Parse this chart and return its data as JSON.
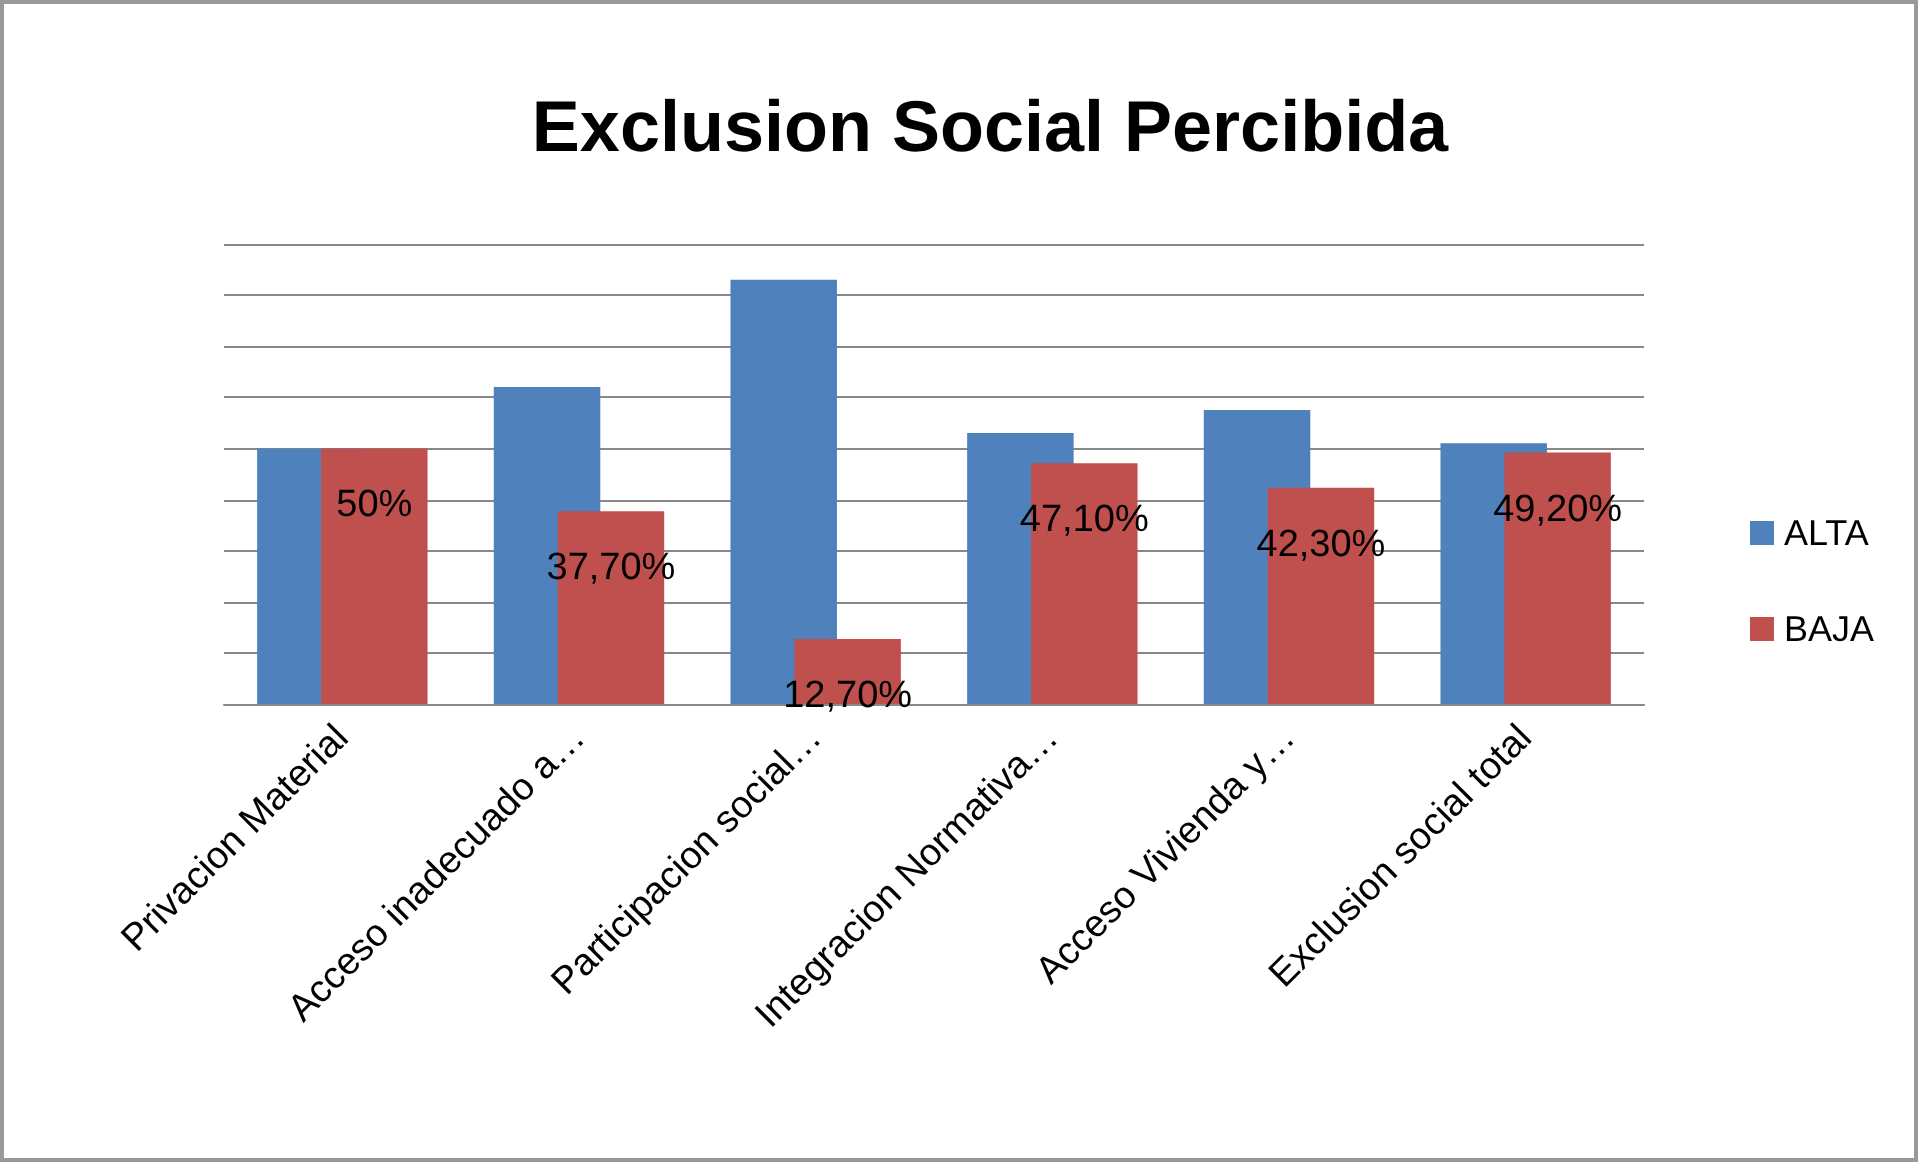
{
  "chart_data": {
    "type": "bar",
    "title": "Exclusion Social Percibida",
    "categories": [
      "Privacion Material",
      "Acceso inadecuado a…",
      "Participacion social…",
      "Integracion Normativa…",
      "Acceso Vivienda y…",
      "Exclusion social total"
    ],
    "series": [
      {
        "name": "ALTA",
        "color": "#4f81bd",
        "values": [
          50,
          62,
          83,
          53,
          57.5,
          51
        ]
      },
      {
        "name": "BAJA",
        "color": "#c0504d",
        "values": [
          50,
          37.7,
          12.7,
          47.1,
          42.3,
          49.2
        ],
        "value_labels": [
          "50%",
          "37,70%",
          "12,70%",
          "47,10%",
          "42,30%",
          "49,20%"
        ]
      }
    ],
    "ylim": [
      0,
      90
    ],
    "yticks": [
      {
        "value": 0,
        "label": null
      },
      {
        "value": 10,
        "label": null
      },
      {
        "value": 20,
        "label": null
      },
      {
        "value": 30,
        "label": null
      },
      {
        "value": 40,
        "label": null
      },
      {
        "value": 50,
        "label": null
      },
      {
        "value": 60,
        "label": null
      },
      {
        "value": 70,
        "label": null
      },
      {
        "value": 80,
        "label": null
      },
      {
        "value": 90,
        "label": null
      }
    ],
    "tick_labels": "x",
    "grid": "y",
    "legend": "right"
  }
}
